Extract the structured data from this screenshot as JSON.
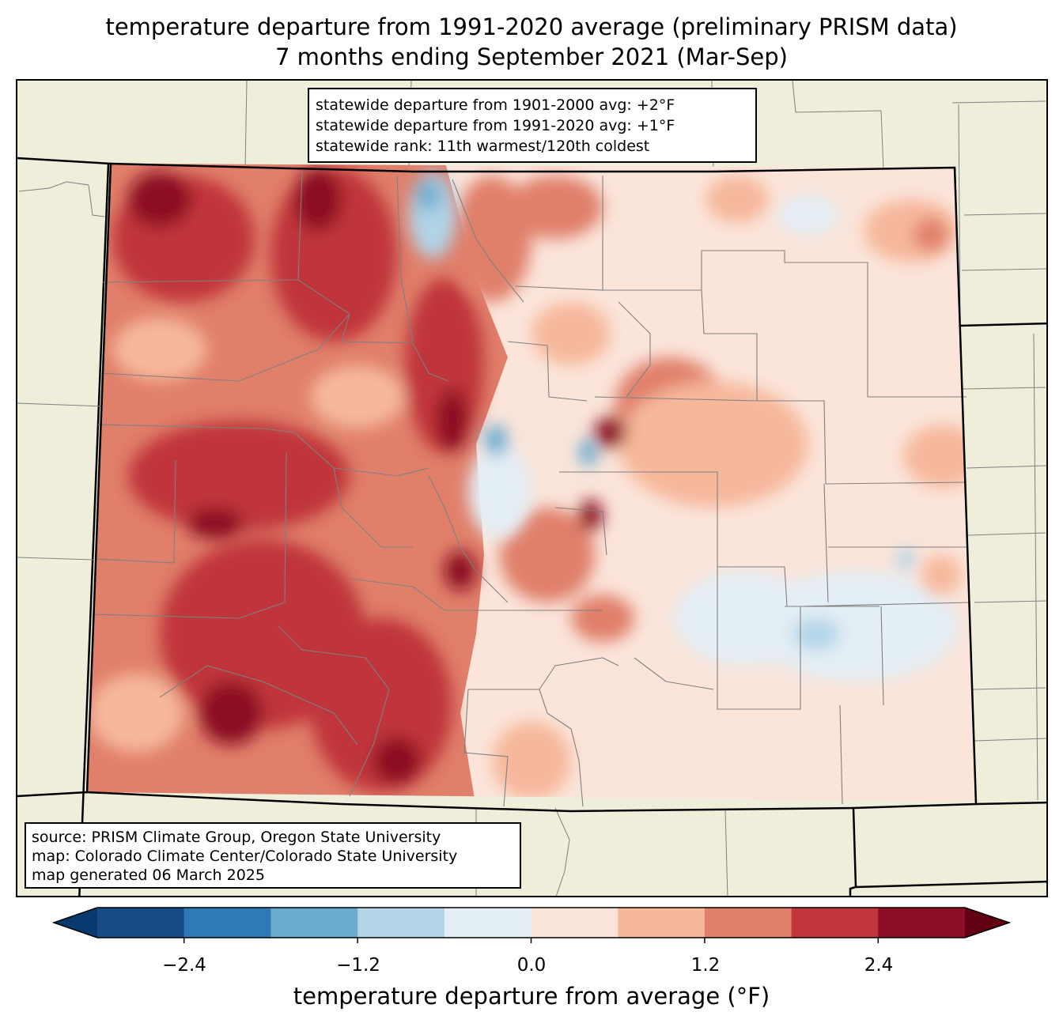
{
  "title": {
    "line1": "temperature departure from 1991-2020 average (preliminary PRISM data)",
    "line2": "7 months ending September 2021 (Mar-Sep)"
  },
  "stats": {
    "line1": "statewide departure from 1901-2000 avg: +2°F",
    "line2": "statewide departure from 1991-2020 avg: +1°F",
    "line3": "statewide rank: 11th warmest/120th coldest"
  },
  "source": {
    "line1": "source: PRISM Climate Group, Oregon State University",
    "line2": "map: Colorado Climate Center/Colorado State University",
    "line3": "map generated 06 March 2025"
  },
  "colorbar": {
    "label": "temperature departure from average (°F)",
    "ticks": [
      "−2.4",
      "−1.2",
      "0.0",
      "1.2",
      "2.4"
    ],
    "colors": {
      "under": "#073a6e",
      "bins": [
        "#164b86",
        "#2e79b6",
        "#6aabd0",
        "#b1d4e7",
        "#e4eef5",
        "#fbe5da",
        "#f6b89b",
        "#e07f6a",
        "#c0363a",
        "#8b0e24"
      ],
      "over": "#640013"
    }
  },
  "map_colors": {
    "land": "#efeedb",
    "border": "#000000",
    "county": "#808080"
  }
}
